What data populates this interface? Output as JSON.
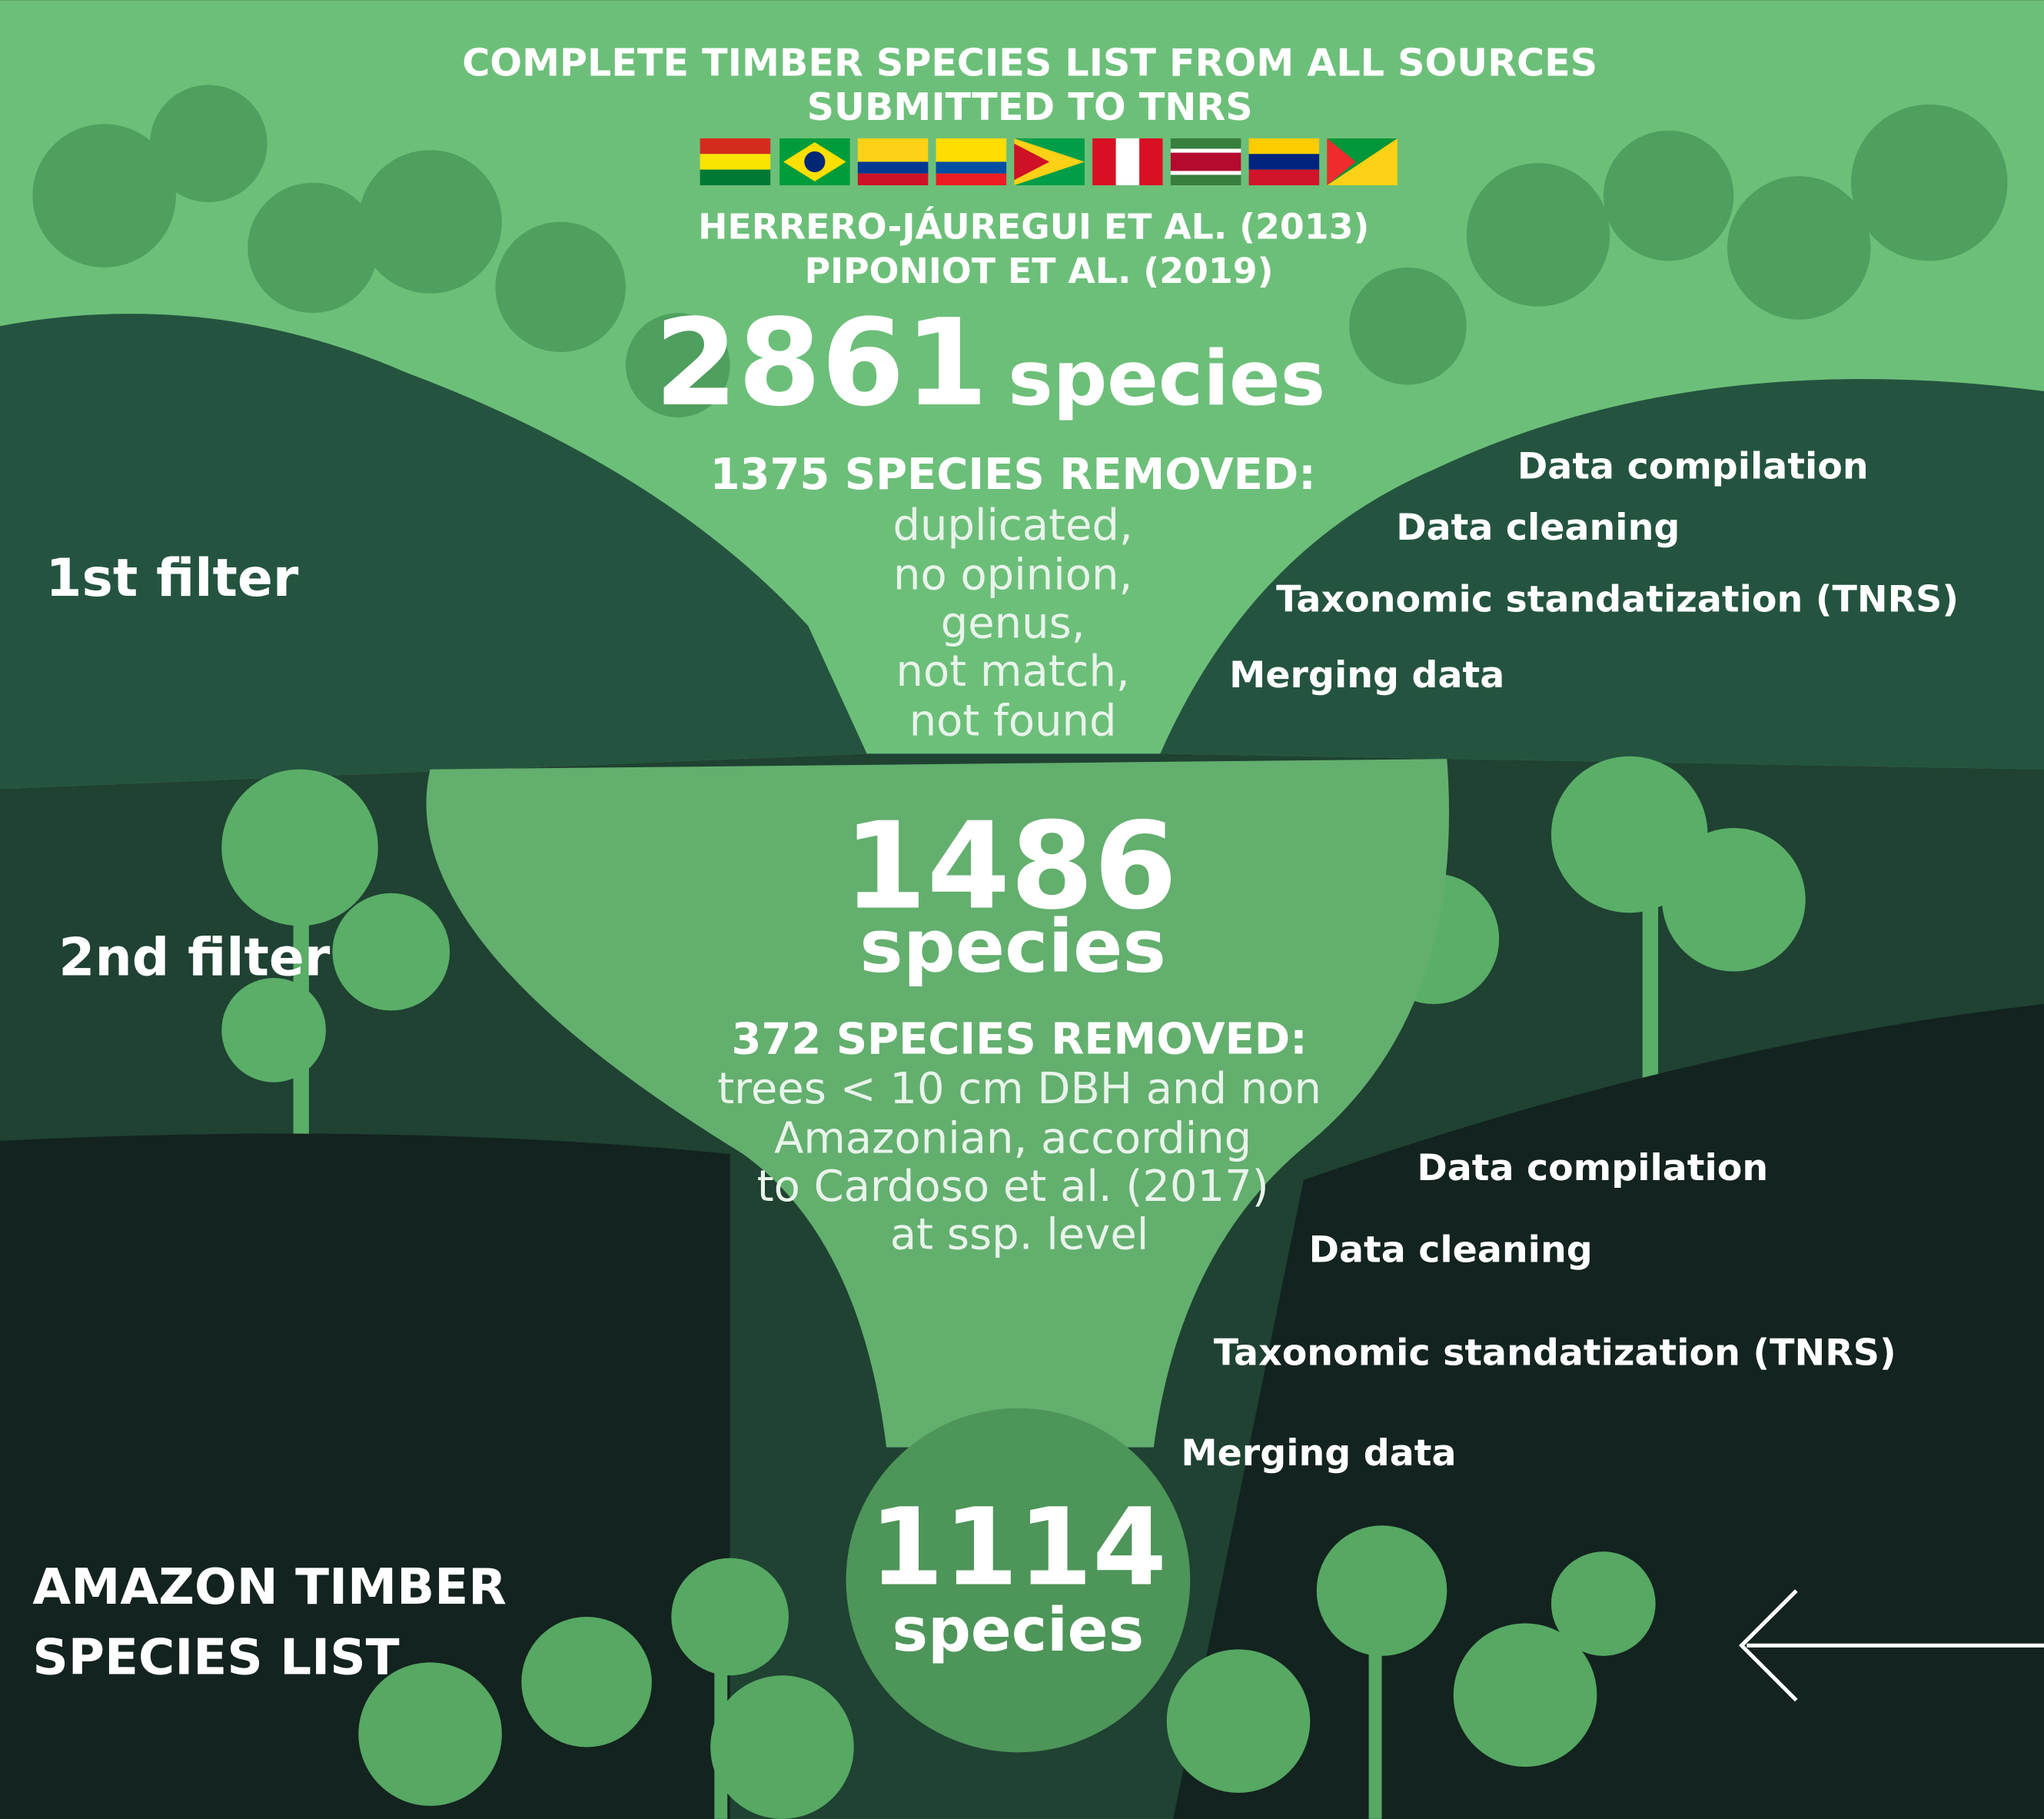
{
  "header": {
    "title_lines": [
      "COMPLETE TIMBER SPECIES LIST FROM ALL SOURCES",
      "SUBMITTED TO TNRS"
    ],
    "sources": [
      "HERRERO-JÁUREGUI ET AL. (2013)",
      "PIPONIOT ET AL. (2019)"
    ]
  },
  "stages": [
    {
      "filter_label": "1st filter",
      "count": 2861,
      "unit": "species",
      "removed_heading": "1375 SPECIES REMOVED:",
      "reasons": [
        "duplicated,",
        "no opinion,",
        "genus,",
        "not match,",
        "not found"
      ],
      "steps": [
        "Data compilation",
        "Data cleaning",
        "Taxonomic standatization  (TNRS)",
        "Merging data"
      ]
    },
    {
      "filter_label": "2nd filter",
      "count": 1486,
      "unit": "species",
      "removed_heading": "372 SPECIES REMOVED:",
      "reasons": [
        "trees < 10 cm DBH and non",
        "Amazonian, according",
        "to Cardoso et al. (2017)",
        "at ssp. level"
      ],
      "steps": [
        "Data compilation",
        "Data cleaning",
        "Taxonomic standatization (TNRS)",
        "Merging data"
      ]
    }
  ],
  "final": {
    "count": 1114,
    "unit": "species",
    "label_lines": [
      "AMAZON TIMBER",
      "SPECIES LIST"
    ]
  }
}
